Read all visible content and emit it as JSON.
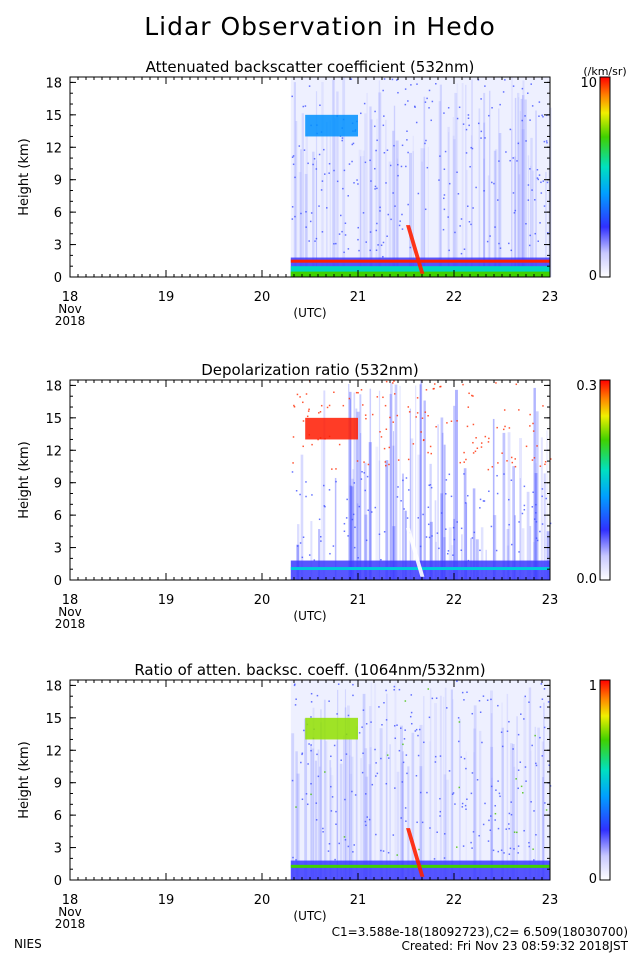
{
  "page": {
    "title": "Lidar Observation in Hedo",
    "footer_left": "NIES",
    "footer_constants": "C1=3.588e-18(18092723),C2= 6.509(18030700)",
    "footer_created": "Created: Fri Nov 23 08:59:32 2018JST"
  },
  "chart_data": [
    {
      "type": "heatmap",
      "title": "Attenuated backscatter coefficient (532nm)",
      "ylabel": "Height (km)",
      "xlabel": "(UTC)",
      "x_ticks": [
        "18",
        "19",
        "20",
        "21",
        "22",
        "23"
      ],
      "x_sub_labels": [
        "Nov",
        "2018"
      ],
      "y_ticks": [
        "18",
        "15",
        "12",
        "9",
        "6",
        "3",
        "0"
      ],
      "ylim": [
        0,
        18.5
      ],
      "xlim": [
        18,
        23
      ],
      "colorbar": {
        "unit": "(/km/sr)",
        "max_label": "10",
        "min_label": "0",
        "scale": "log"
      },
      "grid": false,
      "data_start_utc_day": 20.3
    },
    {
      "type": "heatmap",
      "title": "Depolarization ratio (532nm)",
      "ylabel": "Height (km)",
      "xlabel": "(UTC)",
      "x_ticks": [
        "18",
        "19",
        "20",
        "21",
        "22",
        "23"
      ],
      "x_sub_labels": [
        "Nov",
        "2018"
      ],
      "y_ticks": [
        "18",
        "15",
        "12",
        "9",
        "6",
        "3",
        "0"
      ],
      "ylim": [
        0,
        18.5
      ],
      "xlim": [
        18,
        23
      ],
      "colorbar": {
        "unit": "",
        "max_label": "0.3",
        "min_label": "0.0",
        "scale": "linear"
      },
      "grid": false,
      "data_start_utc_day": 20.3
    },
    {
      "type": "heatmap",
      "title": "Ratio of atten. backsc. coeff. (1064nm/532nm)",
      "ylabel": "Height (km)",
      "xlabel": "(UTC)",
      "x_ticks": [
        "18",
        "19",
        "20",
        "21",
        "22",
        "23"
      ],
      "x_sub_labels": [
        "Nov",
        "2018"
      ],
      "y_ticks": [
        "18",
        "15",
        "12",
        "9",
        "6",
        "3",
        "0"
      ],
      "ylim": [
        0,
        18.5
      ],
      "xlim": [
        18,
        23
      ],
      "colorbar": {
        "unit": "",
        "max_label": "1",
        "min_label": "0",
        "scale": "linear"
      },
      "grid": false,
      "data_start_utc_day": 20.3
    }
  ]
}
